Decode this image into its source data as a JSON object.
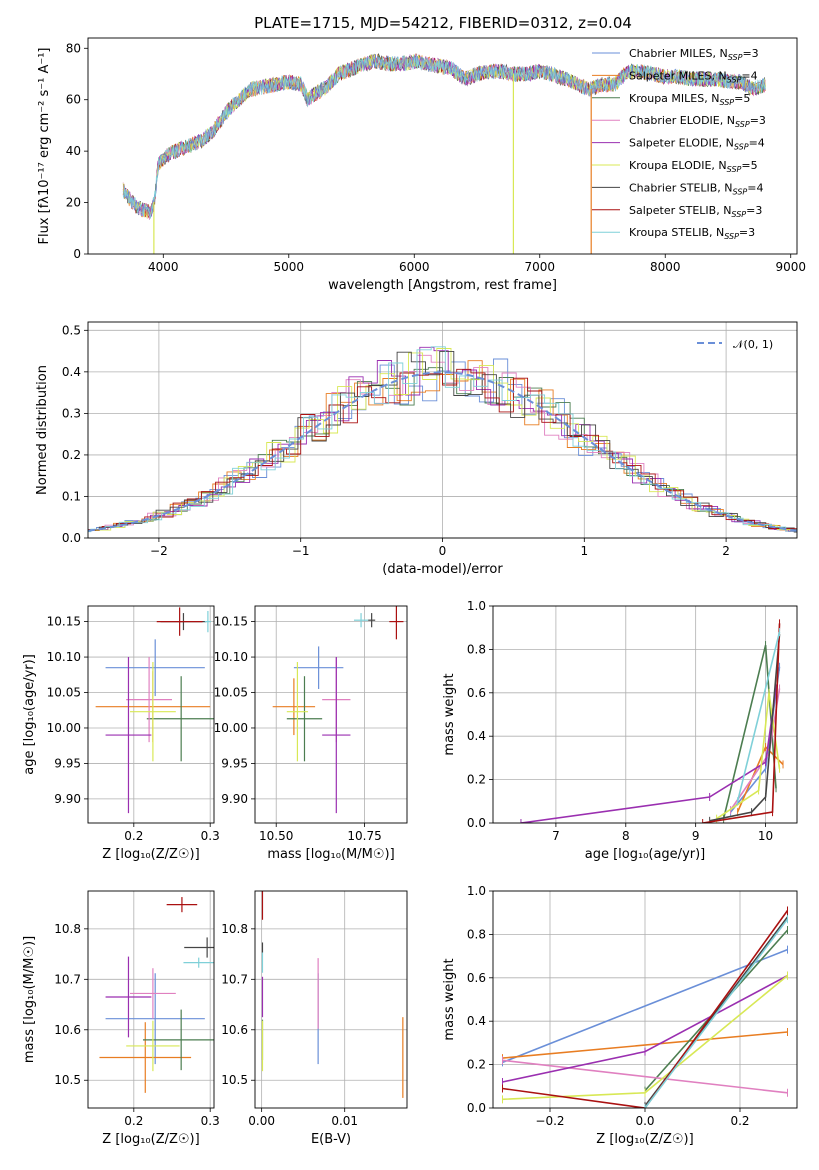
{
  "title": "PLATE=1715, MJD=54212, FIBERID=0312, z=0.04",
  "colors": [
    "#6a8fd8",
    "#e87d22",
    "#4c7d50",
    "#e080c0",
    "#9a2fb0",
    "#d8e855",
    "#454545",
    "#aa1111",
    "#7fd0d8"
  ],
  "chart_data": [
    {
      "id": "spectrum",
      "type": "line",
      "xlabel": "wavelength [Angstrom, rest frame]",
      "ylabel": "Flux [fλ10⁻¹⁷ erg cm⁻² s⁻¹ A⁻¹]",
      "xlim": [
        3400,
        9050
      ],
      "ylim": [
        0,
        84
      ],
      "xticks": [
        4000,
        5000,
        6000,
        7000,
        8000,
        9000
      ],
      "yticks": [
        0,
        20,
        40,
        60,
        80
      ],
      "continuum": {
        "x": [
          3680,
          3720,
          3760,
          3800,
          3850,
          3900,
          3930,
          3960,
          4000,
          4050,
          4100,
          4150,
          4200,
          4300,
          4400,
          4500,
          4600,
          4700,
          4800,
          4900,
          5000,
          5100,
          5150,
          5200,
          5300,
          5400,
          5500,
          5600,
          5700,
          5800,
          5900,
          6000,
          6100,
          6200,
          6300,
          6400,
          6500,
          6600,
          6700,
          6800,
          6900,
          7000,
          7100,
          7200,
          7300,
          7400,
          7500,
          7600,
          7700,
          7800,
          7900,
          8000,
          8100,
          8200,
          8300,
          8400,
          8500,
          8600,
          8700,
          8800
        ],
        "y": [
          25,
          22,
          20,
          18,
          17,
          16,
          21,
          35,
          37,
          39,
          40,
          41,
          42,
          44,
          48,
          55,
          60,
          64,
          65,
          66,
          67,
          66,
          60,
          62,
          65,
          70,
          72,
          74,
          75,
          74,
          74,
          75,
          74,
          73,
          72,
          68,
          70,
          71,
          71,
          70,
          70,
          71,
          70,
          68,
          66,
          64,
          66,
          66,
          71,
          71,
          70,
          69,
          69,
          68,
          68,
          68,
          67,
          67,
          64,
          66
        ]
      },
      "dropouts": [
        {
          "x": 3925,
          "color": 5
        },
        {
          "x": 6790,
          "color": 5
        },
        {
          "x": 7410,
          "color": 1
        }
      ],
      "legend": [
        {
          "label": "Chabrier MILES, N",
          "sub": "SSP",
          "n": "=3"
        },
        {
          "label": "Salpeter MILES, N",
          "sub": "SSP",
          "n": "=4"
        },
        {
          "label": "Kroupa MILES, N",
          "sub": "SSP",
          "n": "=5"
        },
        {
          "label": "Chabrier ELODIE, N",
          "sub": "SSP",
          "n": "=3"
        },
        {
          "label": "Salpeter ELODIE, N",
          "sub": "SSP",
          "n": "=4"
        },
        {
          "label": "Kroupa ELODIE, N",
          "sub": "SSP",
          "n": "=5"
        },
        {
          "label": "Chabrier STELIB, N",
          "sub": "SSP",
          "n": "=4"
        },
        {
          "label": "Salpeter STELIB, N",
          "sub": "SSP",
          "n": "=3"
        },
        {
          "label": "Kroupa STELIB, N",
          "sub": "SSP",
          "n": "=3"
        }
      ],
      "legend_placement": "right"
    },
    {
      "id": "residuals",
      "type": "histogram",
      "xlabel": "(data-model)/error",
      "ylabel": "Normed distribution",
      "xlim": [
        -2.5,
        2.5
      ],
      "ylim": [
        0,
        0.52
      ],
      "xticks": [
        -2,
        -1,
        0,
        1,
        2
      ],
      "yticks": [
        0.0,
        0.1,
        0.2,
        0.3,
        0.4,
        0.5
      ],
      "grid": true,
      "reference": {
        "label": "𝒩(0, 1)",
        "mean": 0,
        "sigma": 1
      },
      "legend_placement": "top-right"
    },
    {
      "id": "age-vs-z",
      "type": "scatter",
      "xlabel": "Z [log₁₀(Z/Z☉)]",
      "ylabel": "age  [log₁₀(age/yr)]",
      "xlim": [
        0.14,
        0.305
      ],
      "ylim": [
        9.866,
        10.172
      ],
      "xticks": [
        0.2,
        0.3
      ],
      "xticklabels": [
        "0.2",
        "0.3"
      ],
      "yticks": [
        9.9,
        9.95,
        10.0,
        10.05,
        10.1,
        10.15
      ],
      "grid": true,
      "points": [
        {
          "x": 0.228,
          "y": 10.085,
          "xerr": 0.065,
          "yerr": 0.04
        },
        {
          "x": 0.225,
          "y": 10.03,
          "xerr": 0.075,
          "yerr": 0.05
        },
        {
          "x": 0.262,
          "y": 10.013,
          "xerr": 0.045,
          "yerr": 0.06
        },
        {
          "x": 0.22,
          "y": 10.04,
          "xerr": 0.03,
          "yerr": 0.06
        },
        {
          "x": 0.193,
          "y": 9.99,
          "xerr": 0.03,
          "yerr": 0.11
        },
        {
          "x": 0.225,
          "y": 10.023,
          "xerr": 0.03,
          "yerr": 0.07
        },
        {
          "x": 0.265,
          "y": 10.15,
          "xerr": 0.03,
          "yerr": 0.012
        },
        {
          "x": 0.26,
          "y": 10.15,
          "xerr": 0.03,
          "yerr": 0.02
        },
        {
          "x": 0.297,
          "y": 10.15,
          "xerr": 0.004,
          "yerr": 0.015
        }
      ]
    },
    {
      "id": "age-vs-mass",
      "type": "scatter",
      "xlabel": "mass [log₁₀(M/M☉)]",
      "ylabel": "",
      "xlim": [
        10.44,
        10.87
      ],
      "ylim": [
        9.866,
        10.172
      ],
      "xticks": [
        10.5,
        10.75
      ],
      "xticklabels": [
        "10.50",
        "10.75"
      ],
      "yticks": [
        9.9,
        9.95,
        10.0,
        10.05,
        10.1,
        10.15
      ],
      "grid": true,
      "points": [
        {
          "x": 10.62,
          "y": 10.085,
          "xerr": 0.07,
          "yerr": 0.03
        },
        {
          "x": 10.55,
          "y": 10.03,
          "xerr": 0.06,
          "yerr": 0.04
        },
        {
          "x": 10.58,
          "y": 10.013,
          "xerr": 0.05,
          "yerr": 0.06
        },
        {
          "x": 10.67,
          "y": 10.04,
          "xerr": 0.04,
          "yerr": 0.06
        },
        {
          "x": 10.67,
          "y": 9.99,
          "xerr": 0.04,
          "yerr": 0.11
        },
        {
          "x": 10.56,
          "y": 10.023,
          "xerr": 0.03,
          "yerr": 0.07
        },
        {
          "x": 10.77,
          "y": 10.152,
          "xerr": 0.01,
          "yerr": 0.01
        },
        {
          "x": 10.84,
          "y": 10.15,
          "xerr": 0.02,
          "yerr": 0.025
        },
        {
          "x": 10.74,
          "y": 10.152,
          "xerr": 0.02,
          "yerr": 0.01
        }
      ]
    },
    {
      "id": "massweight-vs-age",
      "type": "line",
      "xlabel": "age  [log₁₀(age/yr)]",
      "ylabel": "mass weight",
      "xlim": [
        6.1,
        10.45
      ],
      "ylim": [
        0,
        1.0
      ],
      "xticks": [
        7,
        8,
        9,
        10
      ],
      "yticks": [
        0.0,
        0.2,
        0.4,
        0.6,
        0.8,
        1.0
      ],
      "grid": true,
      "series": [
        {
          "x": [
            9.5,
            10.0,
            10.2
          ],
          "y": [
            0.05,
            0.25,
            0.72
          ]
        },
        {
          "x": [
            9.6,
            10.0,
            10.25
          ],
          "y": [
            0.05,
            0.35,
            0.27
          ]
        },
        {
          "x": [
            9.4,
            10.0,
            10.15
          ],
          "y": [
            0.02,
            0.82,
            0.16
          ]
        },
        {
          "x": [
            9.5,
            10.05,
            10.2
          ],
          "y": [
            0.06,
            0.32,
            0.62
          ]
        },
        {
          "x": [
            6.5,
            9.2,
            10.0,
            10.15
          ],
          "y": [
            0.0,
            0.12,
            0.28,
            0.62
          ]
        },
        {
          "x": [
            9.3,
            9.9,
            10.05,
            10.2
          ],
          "y": [
            0.02,
            0.15,
            0.6,
            0.25
          ]
        },
        {
          "x": [
            9.2,
            9.8,
            10.0,
            10.2
          ],
          "y": [
            0.01,
            0.05,
            0.12,
            0.87
          ]
        },
        {
          "x": [
            9.1,
            10.1,
            10.2
          ],
          "y": [
            0.0,
            0.05,
            0.92
          ]
        },
        {
          "x": [
            9.6,
            10.2
          ],
          "y": [
            0.1,
            0.88
          ]
        }
      ]
    },
    {
      "id": "mass-vs-z",
      "type": "scatter",
      "xlabel": "Z [log₁₀(Z/Z☉)]",
      "ylabel": "mass [log₁₀(M/M☉)]",
      "xlim": [
        0.14,
        0.305
      ],
      "ylim": [
        10.445,
        10.875
      ],
      "xticks": [
        0.2,
        0.3
      ],
      "xticklabels": [
        "0.2",
        "0.3"
      ],
      "yticks": [
        10.5,
        10.6,
        10.7,
        10.8
      ],
      "grid": true,
      "points": [
        {
          "x": 0.228,
          "y": 10.622,
          "xerr": 0.065,
          "yerr": 0.09
        },
        {
          "x": 0.215,
          "y": 10.545,
          "xerr": 0.06,
          "yerr": 0.07
        },
        {
          "x": 0.262,
          "y": 10.58,
          "xerr": 0.05,
          "yerr": 0.06
        },
        {
          "x": 0.225,
          "y": 10.672,
          "xerr": 0.03,
          "yerr": 0.05
        },
        {
          "x": 0.193,
          "y": 10.665,
          "xerr": 0.03,
          "yerr": 0.08
        },
        {
          "x": 0.225,
          "y": 10.568,
          "xerr": 0.035,
          "yerr": 0.05
        },
        {
          "x": 0.296,
          "y": 10.763,
          "xerr": 0.03,
          "yerr": 0.02
        },
        {
          "x": 0.263,
          "y": 10.848,
          "xerr": 0.02,
          "yerr": 0.015
        },
        {
          "x": 0.285,
          "y": 10.733,
          "xerr": 0.02,
          "yerr": 0.01
        }
      ]
    },
    {
      "id": "mass-vs-ebv",
      "type": "scatter",
      "xlabel": "E(B-V)",
      "ylabel": "",
      "xlim": [
        -0.0008,
        0.0175
      ],
      "ylim": [
        10.445,
        10.875
      ],
      "xticks": [
        0.0,
        0.01
      ],
      "xticklabels": [
        "0.00",
        "0.01"
      ],
      "yticks": [
        10.5,
        10.6,
        10.7,
        10.8
      ],
      "grid": true,
      "points": [
        {
          "x": 0.0068,
          "y": 10.622,
          "xerr": 0,
          "yerr": 0.09
        },
        {
          "x": 0.017,
          "y": 10.545,
          "xerr": 0,
          "yerr": 0.08
        },
        {
          "x": 0.0001,
          "y": 10.58,
          "xerr": 0,
          "yerr": 0.04
        },
        {
          "x": 0.0068,
          "y": 10.672,
          "xerr": 0,
          "yerr": 0.07
        },
        {
          "x": 0.0001,
          "y": 10.665,
          "xerr": 0,
          "yerr": 0.04
        },
        {
          "x": 0.0001,
          "y": 10.568,
          "xerr": 0,
          "yerr": 0.05
        },
        {
          "x": 0.0001,
          "y": 10.763,
          "xerr": 0,
          "yerr": 0.01
        },
        {
          "x": 0.0001,
          "y": 10.848,
          "xerr": 0,
          "yerr": 0.03
        },
        {
          "x": 0.0001,
          "y": 10.733,
          "xerr": 0,
          "yerr": 0.02
        }
      ]
    },
    {
      "id": "massweight-vs-z",
      "type": "line",
      "xlabel": "Z [log₁₀(Z/Z☉)]",
      "ylabel": "mass weight",
      "xlim": [
        -0.32,
        0.32
      ],
      "ylim": [
        0,
        1.0
      ],
      "xticks": [
        -0.2,
        0.0,
        0.2
      ],
      "xticklabels": [
        "−0.2",
        "0.0",
        "0.2"
      ],
      "yticks": [
        0.0,
        0.2,
        0.4,
        0.6,
        0.8,
        1.0
      ],
      "grid": true,
      "series": [
        {
          "x": [
            -0.3,
            0.3
          ],
          "y": [
            0.21,
            0.73
          ]
        },
        {
          "x": [
            -0.3,
            0.3
          ],
          "y": [
            0.23,
            0.35
          ]
        },
        {
          "x": [
            0.0,
            0.3
          ],
          "y": [
            0.08,
            0.82
          ]
        },
        {
          "x": [
            -0.3,
            0.3
          ],
          "y": [
            0.22,
            0.07
          ]
        },
        {
          "x": [
            -0.3,
            0.0,
            0.3
          ],
          "y": [
            0.12,
            0.26,
            0.61
          ]
        },
        {
          "x": [
            -0.3,
            0.0,
            0.3
          ],
          "y": [
            0.04,
            0.07,
            0.61
          ]
        },
        {
          "x": [
            0.0,
            0.3
          ],
          "y": [
            0.01,
            0.88
          ]
        },
        {
          "x": [
            -0.3,
            0.0,
            0.3
          ],
          "y": [
            0.09,
            0.0,
            0.91
          ]
        },
        {
          "x": [
            0.0,
            0.3
          ],
          "y": [
            0.0,
            0.87
          ]
        }
      ]
    }
  ]
}
